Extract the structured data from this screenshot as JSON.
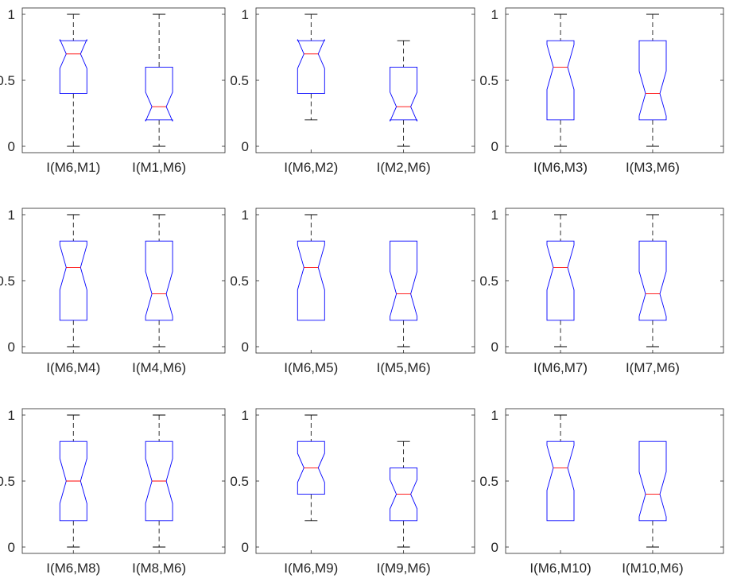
{
  "colors": {
    "box": "#0000ff",
    "median": "#ff0000",
    "whisker": "#000000",
    "axes": "#262626"
  },
  "chart_data": [
    {
      "type": "box",
      "notched": true,
      "ylim": [
        0,
        1
      ],
      "yticks": [
        "0",
        "0.5",
        "1"
      ],
      "categories": [
        "I(M6,M1)",
        "I(M1,M6)"
      ],
      "boxes": [
        {
          "min": 0,
          "q1": 0.4,
          "median": 0.7,
          "q3": 0.8,
          "max": 1,
          "notch_low": 0.59,
          "notch_high": 0.81
        },
        {
          "min": 0,
          "q1": 0.2,
          "median": 0.3,
          "q3": 0.6,
          "max": 1,
          "notch_low": 0.19,
          "notch_high": 0.41
        }
      ]
    },
    {
      "type": "box",
      "notched": true,
      "ylim": [
        0,
        1
      ],
      "yticks": [
        "0",
        "0.5",
        "1"
      ],
      "categories": [
        "I(M6,M2)",
        "I(M2,M6)"
      ],
      "boxes": [
        {
          "min": 0.2,
          "q1": 0.4,
          "median": 0.7,
          "q3": 0.8,
          "max": 1,
          "notch_low": 0.59,
          "notch_high": 0.81
        },
        {
          "min": 0,
          "q1": 0.2,
          "median": 0.3,
          "q3": 0.6,
          "max": 0.8,
          "notch_low": 0.19,
          "notch_high": 0.41
        }
      ]
    },
    {
      "type": "box",
      "notched": true,
      "ylim": [
        0,
        1
      ],
      "yticks": [
        "0",
        "0.5",
        "1"
      ],
      "categories": [
        "I(M6,M3)",
        "I(M3,M6)"
      ],
      "boxes": [
        {
          "min": 0,
          "q1": 0.2,
          "median": 0.6,
          "q3": 0.8,
          "max": 1,
          "notch_low": 0.43,
          "notch_high": 0.77
        },
        {
          "min": 0,
          "q1": 0.2,
          "median": 0.4,
          "q3": 0.8,
          "max": 1,
          "notch_low": 0.23,
          "notch_high": 0.57
        }
      ]
    },
    {
      "type": "box",
      "notched": true,
      "ylim": [
        0,
        1
      ],
      "yticks": [
        "0",
        "0.5",
        "1"
      ],
      "categories": [
        "I(M6,M4)",
        "I(M4,M6)"
      ],
      "boxes": [
        {
          "min": 0,
          "q1": 0.2,
          "median": 0.6,
          "q3": 0.8,
          "max": 1,
          "notch_low": 0.43,
          "notch_high": 0.77
        },
        {
          "min": 0,
          "q1": 0.2,
          "median": 0.4,
          "q3": 0.8,
          "max": 1,
          "notch_low": 0.23,
          "notch_high": 0.57
        }
      ]
    },
    {
      "type": "box",
      "notched": true,
      "ylim": [
        0,
        1
      ],
      "yticks": [
        "0",
        "0.5",
        "1"
      ],
      "categories": [
        "I(M6,M5)",
        "I(M5,M6)"
      ],
      "boxes": [
        {
          "min": 0.2,
          "q1": 0.2,
          "median": 0.6,
          "q3": 0.8,
          "max": 1,
          "notch_low": 0.43,
          "notch_high": 0.77
        },
        {
          "min": 0,
          "q1": 0.2,
          "median": 0.4,
          "q3": 0.8,
          "max": 0.8,
          "notch_low": 0.23,
          "notch_high": 0.57
        }
      ]
    },
    {
      "type": "box",
      "notched": true,
      "ylim": [
        0,
        1
      ],
      "yticks": [
        "0",
        "0.5",
        "1"
      ],
      "categories": [
        "I(M6,M7)",
        "I(M7,M6)"
      ],
      "boxes": [
        {
          "min": 0,
          "q1": 0.2,
          "median": 0.6,
          "q3": 0.8,
          "max": 1,
          "notch_low": 0.43,
          "notch_high": 0.77
        },
        {
          "min": 0,
          "q1": 0.2,
          "median": 0.4,
          "q3": 0.8,
          "max": 1,
          "notch_low": 0.23,
          "notch_high": 0.57
        }
      ]
    },
    {
      "type": "box",
      "notched": true,
      "ylim": [
        0,
        1
      ],
      "yticks": [
        "0",
        "0.5",
        "1"
      ],
      "categories": [
        "I(M6,M8)",
        "I(M8,M6)"
      ],
      "boxes": [
        {
          "min": 0,
          "q1": 0.2,
          "median": 0.5,
          "q3": 0.8,
          "max": 1,
          "notch_low": 0.33,
          "notch_high": 0.67
        },
        {
          "min": 0,
          "q1": 0.2,
          "median": 0.5,
          "q3": 0.8,
          "max": 1,
          "notch_low": 0.33,
          "notch_high": 0.67
        }
      ]
    },
    {
      "type": "box",
      "notched": true,
      "ylim": [
        0,
        1
      ],
      "yticks": [
        "0",
        "0.5",
        "1"
      ],
      "categories": [
        "I(M6,M9)",
        "I(M9,M6)"
      ],
      "boxes": [
        {
          "min": 0.2,
          "q1": 0.4,
          "median": 0.6,
          "q3": 0.8,
          "max": 1,
          "notch_low": 0.49,
          "notch_high": 0.71
        },
        {
          "min": 0,
          "q1": 0.2,
          "median": 0.4,
          "q3": 0.6,
          "max": 0.8,
          "notch_low": 0.29,
          "notch_high": 0.51
        }
      ]
    },
    {
      "type": "box",
      "notched": true,
      "ylim": [
        0,
        1
      ],
      "yticks": [
        "0",
        "0.5",
        "1"
      ],
      "categories": [
        "I(M6,M10)",
        "I(M10,M6)"
      ],
      "boxes": [
        {
          "min": 0.2,
          "q1": 0.2,
          "median": 0.6,
          "q3": 0.8,
          "max": 1,
          "notch_low": 0.43,
          "notch_high": 0.77
        },
        {
          "min": 0,
          "q1": 0.2,
          "median": 0.4,
          "q3": 0.8,
          "max": 0.8,
          "notch_low": 0.23,
          "notch_high": 0.57
        }
      ]
    }
  ]
}
